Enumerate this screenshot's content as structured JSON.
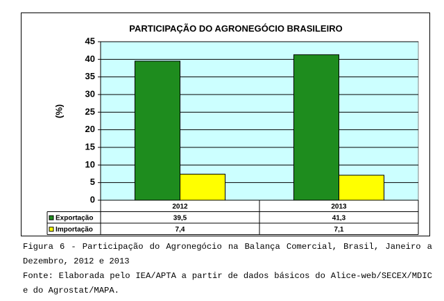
{
  "chart_data": {
    "type": "bar",
    "title": "PARTICIPAÇÃO DO AGRONEGÓCIO BRASILEIRO",
    "ylabel": "(%)",
    "categories": [
      "2012",
      "2013"
    ],
    "series": [
      {
        "name": "Exportação",
        "color": "#1e8c1e",
        "values": [
          39.5,
          41.3
        ],
        "value_labels": [
          "39,5",
          "41,3"
        ]
      },
      {
        "name": "Importação",
        "color": "#ffff00",
        "values": [
          7.4,
          7.1
        ],
        "value_labels": [
          "7,4",
          "7,1"
        ]
      }
    ],
    "ylim": [
      0,
      45
    ],
    "yticks": [
      0,
      5,
      10,
      15,
      20,
      25,
      30,
      35,
      40,
      45
    ],
    "grid": true,
    "caption": "Figura 6 - Participação do Agronegócio na Balança Comercial, Brasil, Janeiro a Dezembro, 2012 e 2013",
    "source": "Fonte: Elaborada pelo IEA/APTA a partir de dados básicos do Alice-web/SECEX/MDIC e do Agrostat/MAPA."
  }
}
